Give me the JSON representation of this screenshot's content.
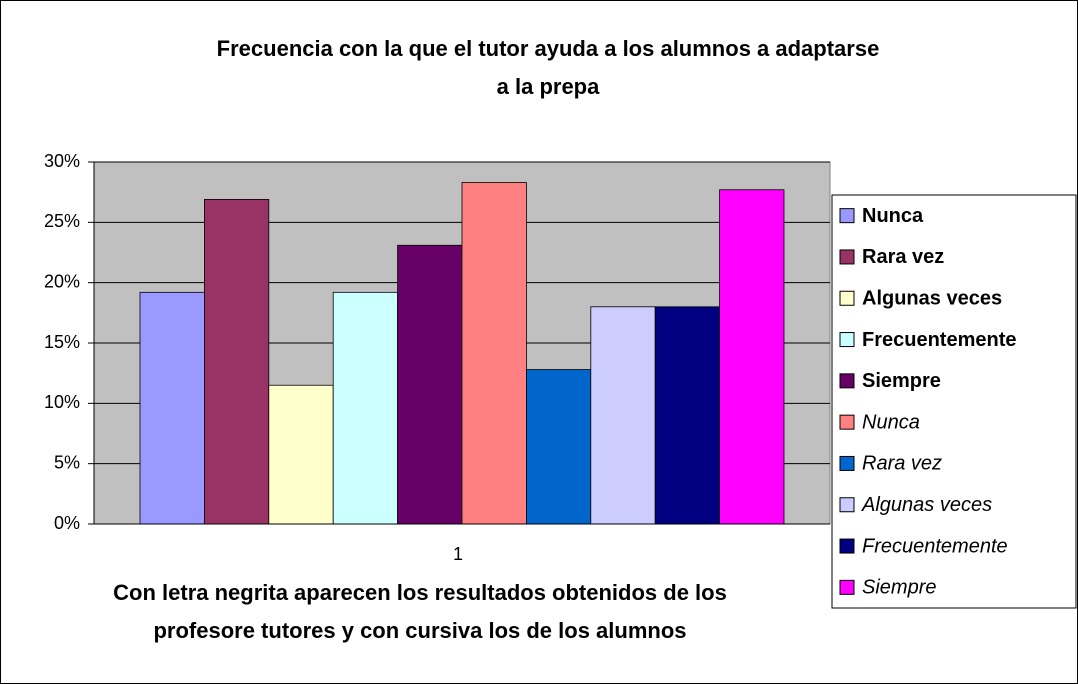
{
  "chart_data": {
    "type": "bar",
    "title": [
      "Frecuencia con la que el tutor ayuda a los alumnos a adaptarse",
      "a la prepa"
    ],
    "note": [
      "Con letra negrita aparecen los resultados obtenidos de los",
      "profesore tutores y con cursiva los de los alumnos"
    ],
    "categories": [
      "1"
    ],
    "series": [
      {
        "name": "Nunca",
        "color": "#9999ff",
        "legend_style": "bold",
        "values": [
          19.2
        ]
      },
      {
        "name": "Rara vez",
        "color": "#993366",
        "legend_style": "bold",
        "values": [
          26.9
        ]
      },
      {
        "name": "Algunas veces",
        "color": "#ffffcc",
        "legend_style": "bold",
        "values": [
          11.5
        ]
      },
      {
        "name": "Frecuentemente",
        "color": "#ccffff",
        "legend_style": "bold",
        "values": [
          19.2
        ]
      },
      {
        "name": "Siempre",
        "color": "#660066",
        "legend_style": "bold",
        "values": [
          23.1
        ]
      },
      {
        "name": "Nunca",
        "color": "#ff8080",
        "legend_style": "italic",
        "values": [
          28.3
        ]
      },
      {
        "name": "Rara vez",
        "color": "#0066cc",
        "legend_style": "italic",
        "values": [
          12.8
        ]
      },
      {
        "name": "Algunas veces",
        "color": "#ccccff",
        "legend_style": "italic",
        "values": [
          18
        ]
      },
      {
        "name": "Frecuentemente",
        "color": "#000080",
        "legend_style": "italic",
        "values": [
          18
        ]
      },
      {
        "name": "Siempre",
        "color": "#ff00ff",
        "legend_style": "italic",
        "values": [
          27.7
        ]
      }
    ],
    "ylim": [
      0,
      30
    ],
    "yticks": [
      {
        "value": 0,
        "label": "0%"
      },
      {
        "value": 5,
        "label": "5%"
      },
      {
        "value": 10,
        "label": "10%"
      },
      {
        "value": 15,
        "label": "15%"
      },
      {
        "value": 20,
        "label": "20%"
      },
      {
        "value": 25,
        "label": "25%"
      },
      {
        "value": 30,
        "label": "30%"
      }
    ],
    "grid": true,
    "plot_background": "#c0c0c0",
    "legend": "right"
  }
}
